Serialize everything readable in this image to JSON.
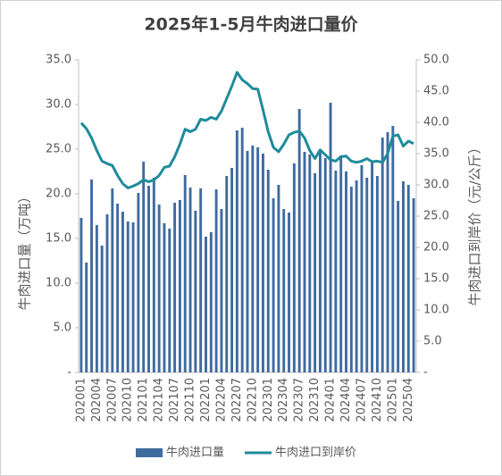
{
  "chart_data": {
    "type": "bar_line",
    "title": "2025年1-5月牛肉进口量价",
    "y_label": "牛肉进口量（万吨）",
    "y2_label": "牛肉进口到岸价（元/公斤）",
    "categories": [
      "202001",
      null,
      null,
      "202004",
      null,
      null,
      "202007",
      null,
      null,
      "202010",
      null,
      null,
      "202101",
      null,
      null,
      "202104",
      null,
      null,
      "202107",
      null,
      null,
      "202110",
      null,
      null,
      "202201",
      null,
      null,
      "202204",
      null,
      null,
      "202207",
      null,
      null,
      "202210",
      null,
      null,
      "202301",
      null,
      null,
      "202304",
      null,
      null,
      "202307",
      null,
      null,
      "202310",
      null,
      null,
      "202401",
      null,
      null,
      "202404",
      null,
      null,
      "202407",
      null,
      null,
      "202410",
      null,
      null,
      "202501",
      null,
      null,
      "202504",
      null
    ],
    "series": [
      {
        "name": "牛肉进口量",
        "type": "bar",
        "color": "#3f6b9f",
        "values": [
          17.3,
          12.3,
          21.6,
          16.5,
          14.2,
          17.7,
          20.6,
          18.9,
          18.0,
          16.9,
          16.8,
          20.1,
          23.6,
          20.9,
          21.8,
          18.8,
          16.7,
          16.1,
          19.0,
          19.3,
          22.1,
          20.7,
          18.1,
          20.6,
          15.2,
          15.7,
          20.5,
          18.3,
          22.0,
          22.9,
          27.1,
          27.4,
          24.8,
          25.4,
          25.2,
          24.5,
          22.7,
          19.5,
          21.0,
          18.3,
          17.9,
          23.4,
          29.5,
          24.7,
          24.4,
          22.3,
          24.9,
          24.0,
          30.2,
          22.6,
          24.3,
          22.5,
          20.8,
          21.5,
          23.2,
          21.8,
          23.5,
          22.0,
          26.3,
          26.9,
          27.6,
          19.2,
          21.4,
          21.0,
          19.5
        ]
      },
      {
        "name": "牛肉进口到岸价",
        "type": "line",
        "axis": "y2",
        "color": "#1f8b9b",
        "values": [
          39.9,
          39.0,
          37.5,
          35.5,
          33.8,
          33.4,
          33.1,
          31.5,
          30.2,
          29.5,
          29.8,
          30.2,
          30.8,
          30.5,
          30.8,
          31.5,
          32.8,
          33.0,
          34.5,
          36.5,
          38.9,
          38.5,
          38.9,
          40.5,
          40.3,
          40.8,
          40.5,
          41.8,
          43.8,
          45.8,
          48.0,
          46.8,
          46.2,
          45.4,
          45.3,
          42.0,
          38.5,
          36.0,
          35.3,
          36.5,
          38.0,
          38.4,
          38.6,
          37.5,
          35.5,
          34.2,
          35.6,
          34.8,
          34.0,
          33.8,
          34.5,
          34.6,
          33.8,
          33.6,
          33.8,
          34.2,
          33.7,
          33.8,
          33.6,
          35.0,
          37.8,
          38.0,
          36.2,
          37.0,
          36.6
        ]
      }
    ],
    "ylim": [
      0,
      35
    ],
    "yticks": [
      {
        "value": 0,
        "label": "-"
      },
      {
        "value": 5,
        "label": "5.0"
      },
      {
        "value": 10,
        "label": "10.0"
      },
      {
        "value": 15,
        "label": "15.0"
      },
      {
        "value": 20,
        "label": "20.0"
      },
      {
        "value": 25,
        "label": "25.0"
      },
      {
        "value": 30,
        "label": "30.0"
      },
      {
        "value": 35,
        "label": "35.0"
      }
    ],
    "y2lim": [
      0,
      50
    ],
    "y2ticks": [
      {
        "value": 0,
        "label": "-"
      },
      {
        "value": 5,
        "label": "5.0"
      },
      {
        "value": 10,
        "label": "10.0"
      },
      {
        "value": 15,
        "label": "15.0"
      },
      {
        "value": 20,
        "label": "20.0"
      },
      {
        "value": 25,
        "label": "25.0"
      },
      {
        "value": 30,
        "label": "30.0"
      },
      {
        "value": 35,
        "label": "35.0"
      },
      {
        "value": 40,
        "label": "40.0"
      },
      {
        "value": 45,
        "label": "45.0"
      },
      {
        "value": 50,
        "label": "50.0"
      }
    ],
    "legend": "bottom"
  }
}
